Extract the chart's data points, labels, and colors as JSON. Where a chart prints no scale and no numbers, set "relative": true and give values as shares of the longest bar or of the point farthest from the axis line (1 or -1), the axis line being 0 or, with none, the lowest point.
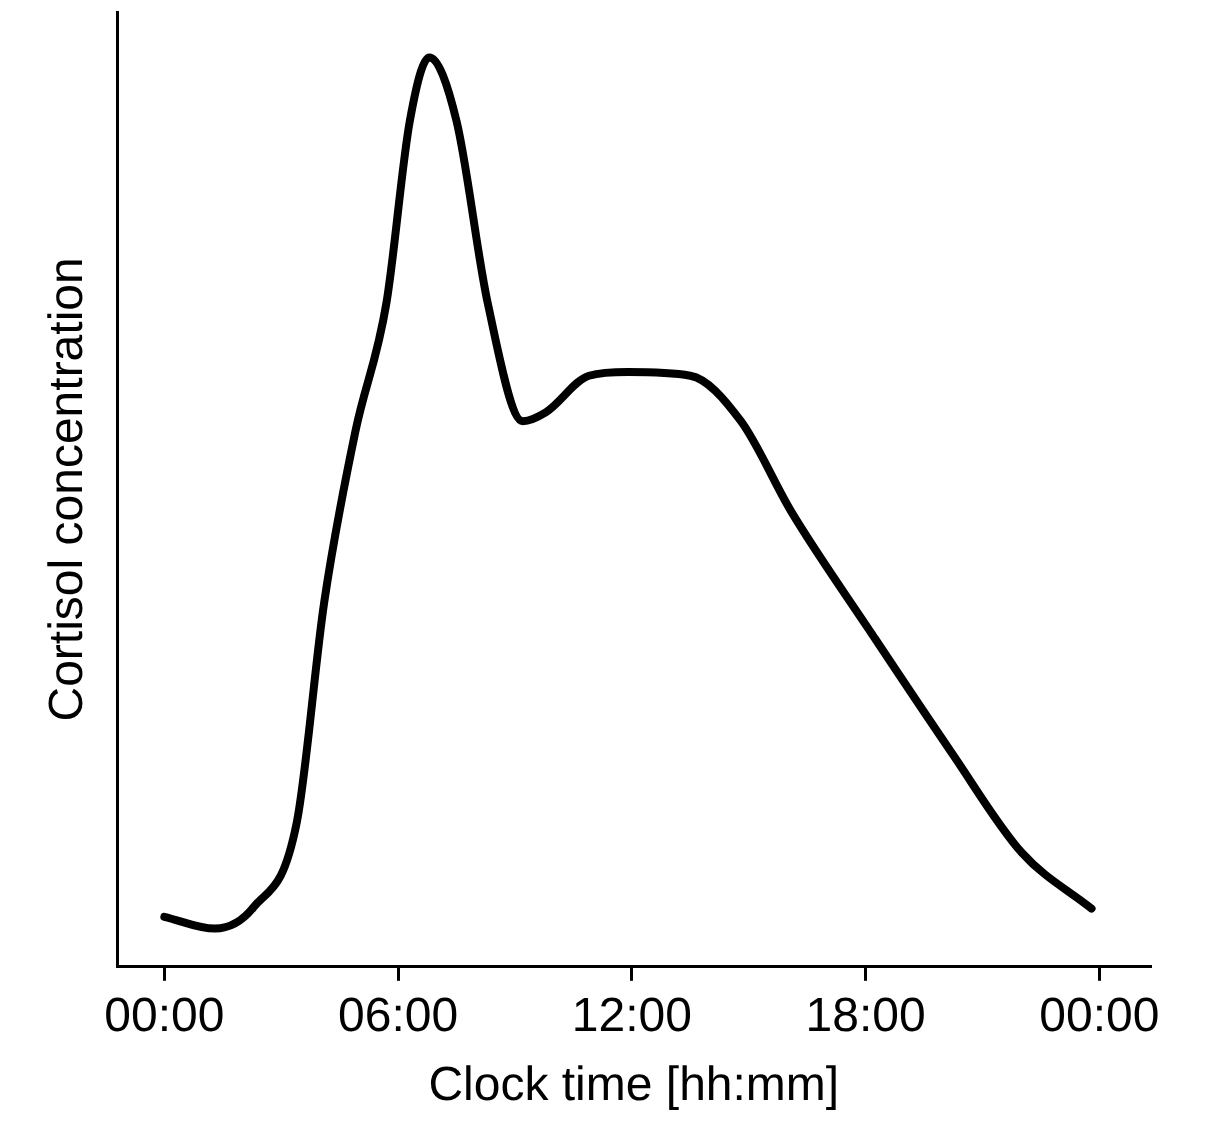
{
  "chart_data": {
    "type": "line",
    "relative": true,
    "xlabel": "Clock time [hh:mm]",
    "ylabel": "Cortisol concentration",
    "xlim": [
      -1.2,
      25.3
    ],
    "xticks": [
      {
        "value": 0,
        "label": "00:00"
      },
      {
        "value": 6,
        "label": "06:00"
      },
      {
        "value": 12,
        "label": "12:00"
      },
      {
        "value": 18,
        "label": "18:00"
      },
      {
        "value": 24,
        "label": "00:00"
      }
    ],
    "grid": false,
    "legend": false,
    "marker": "none",
    "line_style": "solid",
    "series": [
      {
        "color": "#000000",
        "x": [
          0,
          1.3,
          2.3,
          3.4,
          4.1,
          4.9,
          5.7,
          6.3,
          6.8,
          7.5,
          8.3,
          9.2,
          9.8,
          10.9,
          11.9,
          13.5,
          14.8,
          16.1,
          18.1,
          20.2,
          22.0,
          23.8
        ],
        "values": [
          0.055,
          0.042,
          0.066,
          0.159,
          0.4,
          0.588,
          0.73,
          0.93,
          1,
          0.93,
          0.73,
          0.6,
          0.61,
          0.65,
          0.654,
          0.65,
          0.6,
          0.5,
          0.37,
          0.236,
          0.126,
          0.064
        ]
      }
    ]
  }
}
